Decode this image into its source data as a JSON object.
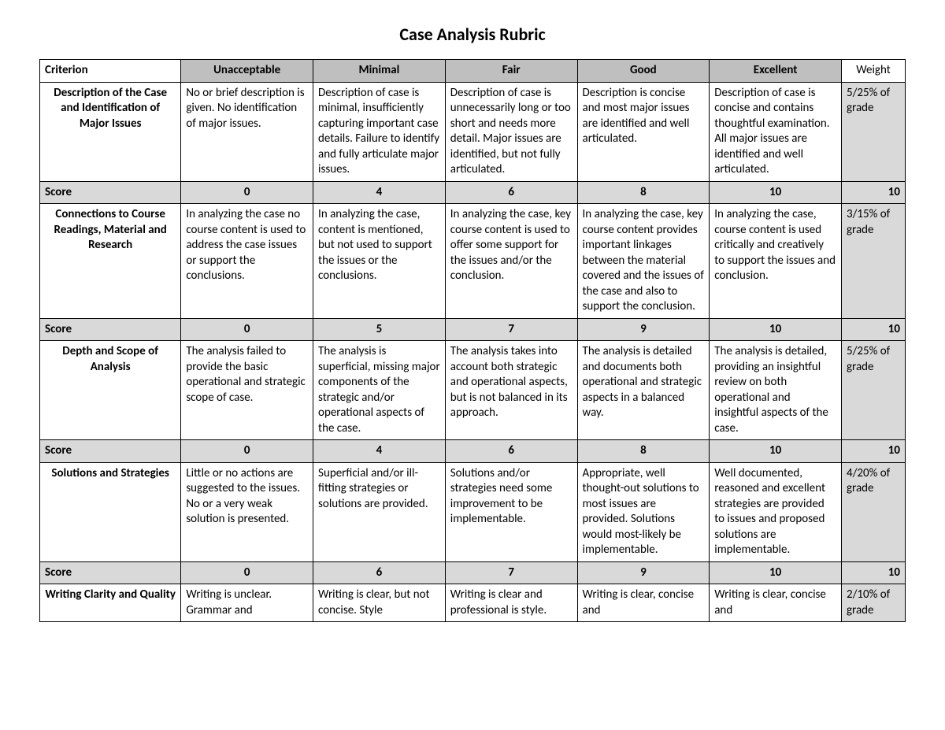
{
  "title": "Case Analysis Rubric",
  "headers": {
    "criterion": "Criterion",
    "levels": [
      "Unacceptable",
      "Minimal",
      "Fair",
      "Good",
      "Excellent"
    ],
    "weight": "Weight"
  },
  "scoreLabel": "Score",
  "styling": {
    "header_level_bg": "#bfbfbf",
    "score_row_bg": "#d9d9d9",
    "weight_cell_bg": "#d9d9d9",
    "border_color": "#000000",
    "background_color": "#ffffff",
    "title_fontsize_pt": 16,
    "cell_fontsize_pt": 11,
    "font_family": "Calibri"
  },
  "criteria": [
    {
      "name": "Description of the Case and Identification of Major Issues",
      "cells": [
        "No or brief description is given.  No identification of major issues.",
        "Description of case is minimal, insufficiently capturing important case details.  Failure to identify and fully articulate major issues.",
        "Description of case is unnecessarily long or too short and needs more detail.  Major issues are identified, but not fully articulated.",
        "Description is concise and most major issues are identified and well articulated.",
        "Description of case is concise and contains thoughtful examination. All major issues are identified and well articulated."
      ],
      "weight": "5/25% of grade",
      "scores": [
        "0",
        "4",
        "6",
        "8",
        "10"
      ],
      "scoreTotal": "10"
    },
    {
      "name": "Connections to Course Readings, Material and Research",
      "cells": [
        "In analyzing the case no course content is used to address the case issues or support the conclusions.",
        "In analyzing the case, content is mentioned, but not used to support the issues or the conclusions.",
        "In analyzing the case, key course content is used to offer some support for the issues and/or the conclusion.",
        "In analyzing the case, key course content provides important linkages between the material covered and the issues of the case and also to support the conclusion.",
        "In analyzing the case, course content is used critically and creatively to support the issues and conclusion."
      ],
      "weight": "3/15% of grade",
      "scores": [
        "0",
        "5",
        "7",
        "9",
        "10"
      ],
      "scoreTotal": "10"
    },
    {
      "name": "Depth and Scope of Analysis",
      "cells": [
        "The analysis failed to provide the basic operational and strategic scope of case.",
        "The analysis is superficial, missing major components of the strategic and/or operational aspects of the case.",
        "The analysis takes into account both strategic and operational aspects, but is not balanced in its approach.",
        "The analysis is detailed and documents both operational and strategic aspects in a balanced way.",
        "The analysis is detailed, providing an insightful review on both operational and insightful aspects of the case."
      ],
      "weight": "5/25% of grade",
      "scores": [
        "0",
        "4",
        "6",
        "8",
        "10"
      ],
      "scoreTotal": "10"
    },
    {
      "name": "Solutions and Strategies",
      "cells": [
        "Little or no actions are suggested to the issues. No or a very weak solution is presented.",
        "Superficial and/or ill-fitting strategies or solutions are provided.",
        "Solutions and/or strategies need some improvement to be implementable.",
        "Appropriate, well thought-out solutions to most issues are provided. Solutions would most-likely be implementable.",
        "Well documented, reasoned and excellent strategies are provided to issues and proposed solutions are implementable."
      ],
      "weight": "4/20% of grade",
      "scores": [
        "0",
        "6",
        "7",
        "9",
        "10"
      ],
      "scoreTotal": "10"
    },
    {
      "name": "Writing Clarity and Quality",
      "cells": [
        "Writing is unclear. Grammar and",
        "Writing is clear, but not concise.  Style",
        "Writing is clear and professional is style.",
        "Writing is clear, concise and",
        "Writing is clear, concise and"
      ],
      "weight": "2/10% of grade",
      "scores": null,
      "scoreTotal": null
    }
  ]
}
